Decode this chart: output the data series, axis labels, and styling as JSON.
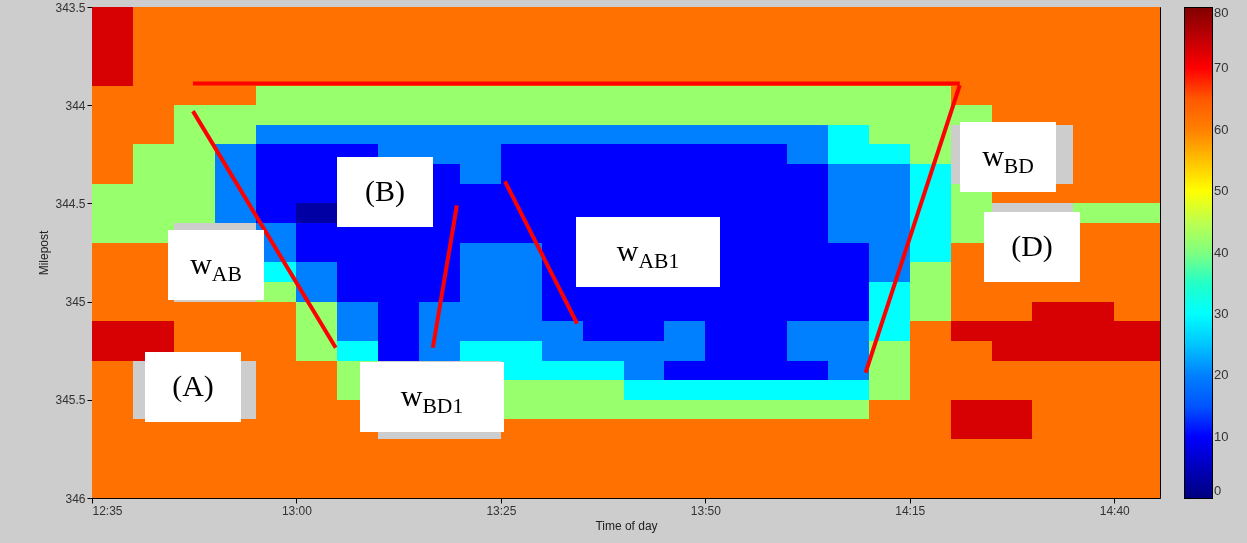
{
  "chart_data": {
    "type": "heatmap",
    "xlabel": "Time of day",
    "ylabel": "Milepost",
    "x": [
      12.625,
      12.7083,
      12.7917,
      12.875,
      12.9583,
      13.0417,
      13.125,
      13.2083,
      13.2917,
      13.375,
      13.4583,
      13.5417,
      13.625,
      13.7083,
      13.7917,
      13.875,
      13.9583,
      14.0417,
      14.125,
      14.2083,
      14.2917,
      14.375,
      14.4583,
      14.5417,
      14.625,
      14.7083
    ],
    "y": [
      343.55,
      343.65,
      343.75,
      343.85,
      343.95,
      344.05,
      344.15,
      344.25,
      344.35,
      344.45,
      344.55,
      344.65,
      344.75,
      344.85,
      344.95,
      345.05,
      345.15,
      345.25,
      345.35,
      345.45,
      345.55,
      345.65,
      345.75,
      345.85,
      345.95
    ],
    "xlim": [
      12.5833,
      14.76
    ],
    "ylim": [
      346,
      343.5
    ],
    "xticks": [
      {
        "value": 12.5833,
        "label": "12:35"
      },
      {
        "value": 13.0,
        "label": "13:00"
      },
      {
        "value": 13.4167,
        "label": "13:25"
      },
      {
        "value": 13.8333,
        "label": "13:50"
      },
      {
        "value": 14.25,
        "label": "14:15"
      },
      {
        "value": 14.6667,
        "label": "14:40"
      }
    ],
    "yticks": [
      343.5,
      344,
      344.5,
      345,
      345.5,
      346
    ],
    "clim": [
      0,
      80
    ],
    "cticks": [
      0,
      10,
      20,
      30,
      40,
      50,
      60,
      70,
      80
    ],
    "cells": [
      [
        73,
        62,
        62,
        62,
        62,
        62,
        62,
        62,
        62,
        62,
        62,
        62,
        62,
        62,
        62,
        62,
        62,
        62,
        62,
        62,
        62,
        62,
        62,
        62,
        62,
        62
      ],
      [
        73,
        62,
        62,
        62,
        62,
        62,
        62,
        62,
        62,
        62,
        62,
        62,
        62,
        62,
        62,
        62,
        62,
        62,
        62,
        62,
        62,
        62,
        62,
        62,
        62,
        62
      ],
      [
        73,
        62,
        62,
        62,
        62,
        62,
        62,
        62,
        62,
        62,
        62,
        62,
        62,
        62,
        62,
        62,
        62,
        62,
        62,
        62,
        62,
        62,
        62,
        62,
        62,
        62
      ],
      [
        73,
        62,
        62,
        62,
        62,
        62,
        62,
        62,
        62,
        62,
        62,
        62,
        62,
        62,
        62,
        62,
        62,
        62,
        62,
        62,
        62,
        62,
        62,
        62,
        62,
        62
      ],
      [
        62,
        62,
        62,
        62,
        42,
        42,
        42,
        42,
        42,
        42,
        42,
        42,
        42,
        42,
        42,
        42,
        42,
        42,
        42,
        42,
        42,
        62,
        62,
        62,
        62,
        62
      ],
      [
        62,
        62,
        42,
        42,
        42,
        42,
        42,
        42,
        42,
        42,
        42,
        42,
        42,
        42,
        42,
        42,
        42,
        42,
        42,
        42,
        42,
        42,
        62,
        62,
        62,
        62
      ],
      [
        62,
        62,
        42,
        42,
        20,
        20,
        20,
        20,
        20,
        20,
        20,
        20,
        20,
        20,
        20,
        20,
        20,
        20,
        30,
        42,
        42,
        null,
        null,
        null,
        62,
        62
      ],
      [
        62,
        42,
        42,
        20,
        10,
        10,
        10,
        20,
        20,
        20,
        10,
        10,
        10,
        10,
        10,
        10,
        10,
        20,
        30,
        30,
        42,
        null,
        null,
        null,
        62,
        62
      ],
      [
        62,
        42,
        42,
        20,
        10,
        10,
        null,
        null,
        10,
        20,
        10,
        10,
        10,
        10,
        10,
        10,
        10,
        10,
        20,
        20,
        30,
        null,
        null,
        null,
        62,
        62
      ],
      [
        42,
        42,
        42,
        20,
        10,
        10,
        null,
        null,
        10,
        10,
        10,
        10,
        10,
        10,
        10,
        10,
        10,
        10,
        20,
        20,
        30,
        42,
        62,
        62,
        62,
        62
      ],
      [
        42,
        42,
        42,
        20,
        10,
        3,
        null,
        null,
        10,
        10,
        10,
        10,
        10,
        10,
        10,
        10,
        10,
        10,
        20,
        20,
        30,
        42,
        null,
        null,
        42,
        42
      ],
      [
        42,
        42,
        null,
        null,
        20,
        10,
        10,
        10,
        10,
        10,
        10,
        10,
        null,
        null,
        null,
        10,
        10,
        10,
        20,
        20,
        30,
        42,
        null,
        null,
        62,
        62
      ],
      [
        62,
        62,
        null,
        null,
        20,
        10,
        10,
        10,
        10,
        20,
        20,
        10,
        null,
        null,
        null,
        10,
        10,
        10,
        10,
        20,
        30,
        62,
        null,
        null,
        62,
        62
      ],
      [
        62,
        62,
        null,
        null,
        30,
        20,
        10,
        10,
        10,
        20,
        20,
        10,
        null,
        null,
        null,
        10,
        10,
        10,
        10,
        20,
        42,
        62,
        null,
        null,
        62,
        62
      ],
      [
        62,
        62,
        null,
        null,
        42,
        20,
        10,
        10,
        10,
        20,
        20,
        10,
        10,
        10,
        10,
        10,
        10,
        10,
        10,
        30,
        42,
        62,
        62,
        62,
        62,
        62
      ],
      [
        62,
        62,
        62,
        62,
        62,
        42,
        20,
        10,
        20,
        20,
        20,
        10,
        10,
        10,
        10,
        10,
        10,
        10,
        10,
        30,
        42,
        62,
        62,
        73,
        73,
        62
      ],
      [
        73,
        73,
        62,
        62,
        62,
        42,
        20,
        10,
        20,
        20,
        20,
        20,
        10,
        10,
        20,
        10,
        10,
        20,
        20,
        30,
        62,
        73,
        73,
        73,
        73,
        73
      ],
      [
        73,
        73,
        62,
        62,
        62,
        42,
        30,
        10,
        20,
        30,
        30,
        20,
        20,
        20,
        20,
        10,
        10,
        20,
        20,
        42,
        62,
        62,
        73,
        73,
        73,
        73
      ],
      [
        62,
        null,
        null,
        null,
        62,
        62,
        42,
        null,
        null,
        null,
        30,
        30,
        30,
        20,
        10,
        10,
        10,
        10,
        20,
        42,
        62,
        62,
        62,
        62,
        62,
        62
      ],
      [
        62,
        null,
        null,
        null,
        62,
        62,
        42,
        null,
        null,
        null,
        42,
        42,
        42,
        30,
        30,
        30,
        30,
        30,
        30,
        42,
        62,
        62,
        62,
        62,
        62,
        62
      ],
      [
        62,
        null,
        null,
        null,
        62,
        62,
        62,
        null,
        null,
        null,
        42,
        42,
        42,
        42,
        42,
        42,
        42,
        42,
        42,
        62,
        62,
        73,
        73,
        62,
        62,
        62
      ],
      [
        62,
        62,
        62,
        62,
        62,
        62,
        62,
        null,
        null,
        null,
        62,
        62,
        62,
        62,
        62,
        62,
        62,
        62,
        62,
        62,
        62,
        73,
        73,
        62,
        62,
        62
      ],
      [
        62,
        62,
        62,
        62,
        62,
        62,
        62,
        62,
        62,
        62,
        62,
        62,
        62,
        62,
        62,
        62,
        62,
        62,
        62,
        62,
        62,
        62,
        62,
        62,
        62,
        62
      ],
      [
        62,
        62,
        62,
        62,
        62,
        62,
        62,
        62,
        62,
        62,
        62,
        62,
        62,
        62,
        62,
        62,
        62,
        62,
        62,
        62,
        62,
        62,
        62,
        62,
        62,
        62
      ],
      [
        62,
        62,
        62,
        62,
        62,
        62,
        62,
        62,
        62,
        62,
        62,
        62,
        62,
        62,
        62,
        62,
        62,
        62,
        62,
        62,
        62,
        62,
        62,
        62,
        62,
        62
      ]
    ],
    "series": [
      {
        "type": "line",
        "color": "#ff0000",
        "x": [
          12.789,
          14.352
        ],
        "values": [
          343.89,
          343.89
        ]
      },
      {
        "type": "line",
        "color": "#ff0000",
        "x": [
          12.789,
          13.08
        ],
        "values": [
          344.03,
          345.235
        ]
      },
      {
        "type": "line",
        "color": "#ff0000",
        "x": [
          13.327,
          13.278
        ],
        "values": [
          344.51,
          345.235
        ]
      },
      {
        "type": "line",
        "color": "#ff0000",
        "x": [
          13.425,
          13.572
        ],
        "values": [
          344.388,
          345.112
        ]
      },
      {
        "type": "line",
        "color": "#ff0000",
        "x": [
          14.352,
          14.16
        ],
        "values": [
          343.898,
          345.362
        ]
      }
    ],
    "annotations": [
      "w$_{AB}$",
      "(A)",
      "(B)",
      "w$_{BD1}$",
      "w$_{AB1}$",
      "w$_{BD}$",
      "(D)"
    ]
  }
}
